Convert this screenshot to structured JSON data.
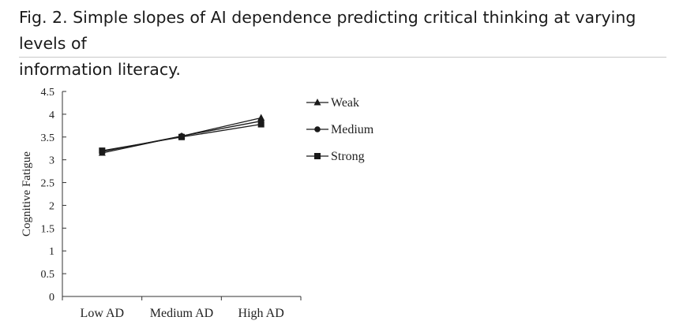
{
  "caption": {
    "line1": "Fig. 2. Simple slopes of AI dependence predicting critical thinking at varying levels of",
    "line2": "information literacy."
  },
  "chart_data": {
    "type": "line",
    "title": "",
    "xlabel": "",
    "ylabel": "Cognitive Fatigue",
    "categories": [
      "Low AD",
      "Medium AD",
      "High AD"
    ],
    "ylim": [
      0,
      4.5
    ],
    "yticks": [
      0,
      0.5,
      1,
      1.5,
      2,
      2.5,
      3,
      3.5,
      4,
      4.5
    ],
    "ytick_labels": [
      "0",
      "0.5",
      "1",
      "1.5",
      "2",
      "2.5",
      "3",
      "3.5",
      "4",
      "4.5"
    ],
    "grid": false,
    "legend_position": "right",
    "series": [
      {
        "name": "Weak",
        "marker": "triangle",
        "values": [
          3.15,
          3.52,
          3.92
        ]
      },
      {
        "name": "Medium",
        "marker": "circle",
        "values": [
          3.18,
          3.52,
          3.85
        ]
      },
      {
        "name": "Strong",
        "marker": "square",
        "values": [
          3.2,
          3.5,
          3.78
        ]
      }
    ],
    "line_color": "#1a1a1a"
  }
}
